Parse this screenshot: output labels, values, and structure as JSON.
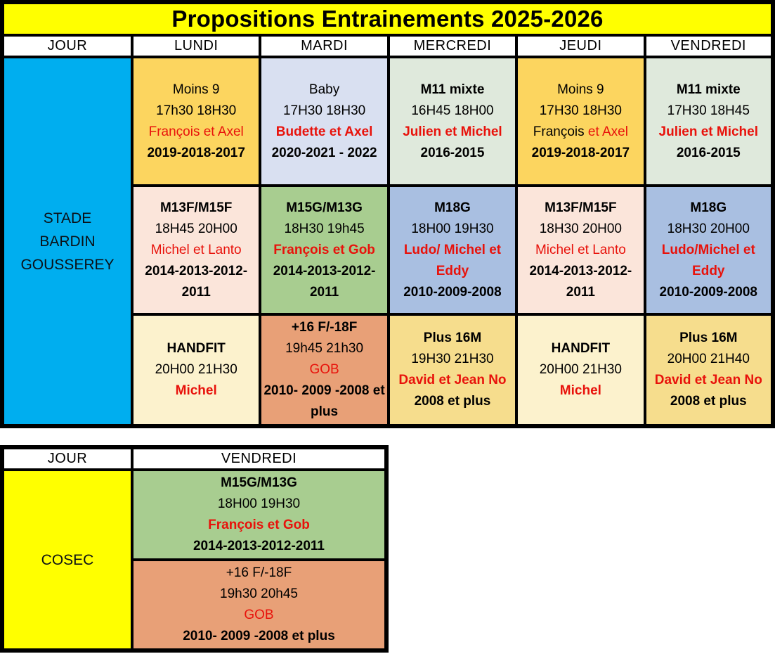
{
  "title": "Propositions Entrainements 2025-2026",
  "palette": {
    "title_bg": "#ffff00",
    "header_bg": "#ffffff",
    "border": "#000000",
    "red_text": "#e8120b",
    "stade_bg": "#00aeef",
    "cosec_bg": "#ffff00",
    "maize": "#fcd55f",
    "periwinkle": "#d9e0f1",
    "pale_green": "#dfe9dc",
    "pale_pink": "#fbe5da",
    "green": "#a8cd90",
    "steel_blue": "#a9bfe1",
    "cream": "#fcf2cd",
    "salmon": "#e8a077",
    "gold": "#f6dd8d"
  },
  "tables": [
    {
      "id": "stade",
      "headers": [
        "JOUR",
        "LUNDI",
        "MARDI",
        "MERCREDI",
        "JEUDI",
        "VENDREDI"
      ],
      "location": {
        "bg": "stade_bg",
        "lines": [
          "STADE",
          "BARDIN",
          "GOUSSEREY"
        ]
      },
      "rows": [
        {
          "cells": [
            {
              "day": "lundi",
              "bg": "maize",
              "lines": [
                [
                  {
                    "t": "Moins 9",
                    "s": "k"
                  }
                ],
                [
                  {
                    "t": "17h30 18H30",
                    "s": "k"
                  }
                ],
                [
                  {
                    "t": "François et Axel",
                    "s": "r"
                  }
                ],
                [
                  {
                    "t": "2019-2018-2017",
                    "s": "b"
                  }
                ]
              ]
            },
            {
              "day": "mardi",
              "bg": "periwinkle",
              "lines": [
                [
                  {
                    "t": "Baby",
                    "s": "k"
                  }
                ],
                [
                  {
                    "t": "17H30 18H30",
                    "s": "k"
                  }
                ],
                [
                  {
                    "t": "Budette et Axel",
                    "s": "rb"
                  }
                ],
                [
                  {
                    "t": "2020-2021 - 2022",
                    "s": "b"
                  }
                ]
              ]
            },
            {
              "day": "mercredi",
              "bg": "pale_green",
              "lines": [
                [
                  {
                    "t": "M11 mixte",
                    "s": "b"
                  }
                ],
                [
                  {
                    "t": "16H45 18H00",
                    "s": "k"
                  }
                ],
                [
                  {
                    "t": "Julien et Michel",
                    "s": "rb"
                  }
                ],
                [
                  {
                    "t": "2016-2015",
                    "s": "b"
                  }
                ]
              ]
            },
            {
              "day": "jeudi",
              "bg": "maize",
              "lines": [
                [
                  {
                    "t": "Moins 9",
                    "s": "k"
                  }
                ],
                [
                  {
                    "t": "17H30 18H30",
                    "s": "k"
                  }
                ],
                [
                  {
                    "t": "François ",
                    "s": "k"
                  },
                  {
                    "t": "et Axel",
                    "s": "r"
                  }
                ],
                [
                  {
                    "t": "2019-2018-2017",
                    "s": "b"
                  }
                ]
              ]
            },
            {
              "day": "vendredi",
              "bg": "pale_green",
              "lines": [
                [
                  {
                    "t": "M11 mixte",
                    "s": "b"
                  }
                ],
                [
                  {
                    "t": "17H30 18H45",
                    "s": "k"
                  }
                ],
                [
                  {
                    "t": "Julien et Michel",
                    "s": "rb"
                  }
                ],
                [
                  {
                    "t": "2016-2015",
                    "s": "b"
                  }
                ]
              ]
            }
          ]
        },
        {
          "cells": [
            {
              "day": "lundi",
              "bg": "pale_pink",
              "lines": [
                [
                  {
                    "t": "M13F/M15F",
                    "s": "b"
                  }
                ],
                [
                  {
                    "t": "18H45 20H00",
                    "s": "k"
                  }
                ],
                [
                  {
                    "t": "Michel et Lanto",
                    "s": "r"
                  }
                ],
                [
                  {
                    "t": "2014-2013-2012-2011",
                    "s": "b"
                  }
                ]
              ]
            },
            {
              "day": "mardi",
              "bg": "green",
              "lines": [
                [
                  {
                    "t": "M15G/M13G",
                    "s": "b"
                  }
                ],
                [
                  {
                    "t": "18H30 19h45",
                    "s": "k"
                  }
                ],
                [
                  {
                    "t": "François et Gob",
                    "s": "rb"
                  }
                ],
                [
                  {
                    "t": "2014-2013-2012-2011",
                    "s": "b"
                  }
                ]
              ]
            },
            {
              "day": "mercredi",
              "bg": "steel_blue",
              "lines": [
                [
                  {
                    "t": "M18G",
                    "s": "b"
                  }
                ],
                [
                  {
                    "t": "18H00 19H30",
                    "s": "k"
                  }
                ],
                [
                  {
                    "t": "Ludo/ Michel et Eddy",
                    "s": "rb"
                  }
                ],
                [
                  {
                    "t": "2010-2009-2008",
                    "s": "b"
                  }
                ]
              ]
            },
            {
              "day": "jeudi",
              "bg": "pale_pink",
              "lines": [
                [
                  {
                    "t": "M13F/M15F",
                    "s": "b"
                  }
                ],
                [
                  {
                    "t": "18H30 20H00",
                    "s": "k"
                  }
                ],
                [
                  {
                    "t": "Michel et Lanto",
                    "s": "r"
                  }
                ],
                [
                  {
                    "t": "2014-2013-2012-2011",
                    "s": "b"
                  }
                ]
              ]
            },
            {
              "day": "vendredi",
              "bg": "steel_blue",
              "lines": [
                [
                  {
                    "t": "M18G",
                    "s": "b"
                  }
                ],
                [
                  {
                    "t": "18H30 20H00",
                    "s": "k"
                  }
                ],
                [
                  {
                    "t": "Ludo/Michel et Eddy",
                    "s": "rb"
                  }
                ],
                [
                  {
                    "t": "2010-2009-2008",
                    "s": "b"
                  }
                ]
              ]
            }
          ]
        },
        {
          "cells": [
            {
              "day": "lundi",
              "bg": "cream",
              "lines": [
                [
                  {
                    "t": "HANDFIT",
                    "s": "b"
                  }
                ],
                [
                  {
                    "t": "20H00 21H30",
                    "s": "k"
                  }
                ],
                [
                  {
                    "t": "Michel",
                    "s": "rb"
                  }
                ]
              ]
            },
            {
              "day": "mardi",
              "bg": "salmon",
              "lines": [
                [
                  {
                    "t": "+16 F/-18F",
                    "s": "b"
                  }
                ],
                [
                  {
                    "t": "19h45 21h30",
                    "s": "k"
                  }
                ],
                [
                  {
                    "t": "GOB",
                    "s": "r"
                  }
                ],
                [
                  {
                    "t": "2010- 2009 -2008 et plus",
                    "s": "b"
                  }
                ]
              ]
            },
            {
              "day": "mercredi",
              "bg": "gold",
              "lines": [
                [
                  {
                    "t": "Plus 16M",
                    "s": "b"
                  }
                ],
                [
                  {
                    "t": "19H30 21H30",
                    "s": "k"
                  }
                ],
                [
                  {
                    "t": "David et Jean No",
                    "s": "rb"
                  }
                ],
                [
                  {
                    "t": "2008 et plus",
                    "s": "b"
                  }
                ]
              ]
            },
            {
              "day": "jeudi",
              "bg": "cream",
              "lines": [
                [
                  {
                    "t": "HANDFIT",
                    "s": "b"
                  }
                ],
                [
                  {
                    "t": "20H00 21H30",
                    "s": "k"
                  }
                ],
                [
                  {
                    "t": "Michel",
                    "s": "rb"
                  }
                ]
              ]
            },
            {
              "day": "vendredi",
              "bg": "gold",
              "lines": [
                [
                  {
                    "t": "Plus 16M",
                    "s": "b"
                  }
                ],
                [
                  {
                    "t": "20H00 21H40",
                    "s": "k"
                  }
                ],
                [
                  {
                    "t": "David et Jean No",
                    "s": "rb"
                  }
                ],
                [
                  {
                    "t": "2008 et plus",
                    "s": "b"
                  }
                ]
              ]
            }
          ]
        }
      ]
    },
    {
      "id": "cosec",
      "headers": [
        "JOUR",
        "VENDREDI"
      ],
      "location": {
        "bg": "cosec_bg",
        "lines": [
          "COSEC"
        ]
      },
      "rows": [
        {
          "cells": [
            {
              "day": "vendredi",
              "bg": "green",
              "lines": [
                [
                  {
                    "t": "M15G/M13G",
                    "s": "b"
                  }
                ],
                [
                  {
                    "t": "18H00 19H30",
                    "s": "k"
                  }
                ],
                [
                  {
                    "t": "François et Gob",
                    "s": "rb"
                  }
                ],
                [
                  {
                    "t": "2014-2013-2012-2011",
                    "s": "b"
                  }
                ]
              ]
            }
          ]
        },
        {
          "cells": [
            {
              "day": "vendredi",
              "bg": "salmon",
              "lines": [
                [
                  {
                    "t": "+16 F/-18F",
                    "s": "k"
                  }
                ],
                [
                  {
                    "t": "19h30 20h45",
                    "s": "k"
                  }
                ],
                [
                  {
                    "t": "GOB",
                    "s": "r"
                  }
                ],
                [
                  {
                    "t": "2010- 2009 -2008 et plus",
                    "s": "b"
                  }
                ]
              ]
            }
          ]
        }
      ]
    }
  ]
}
